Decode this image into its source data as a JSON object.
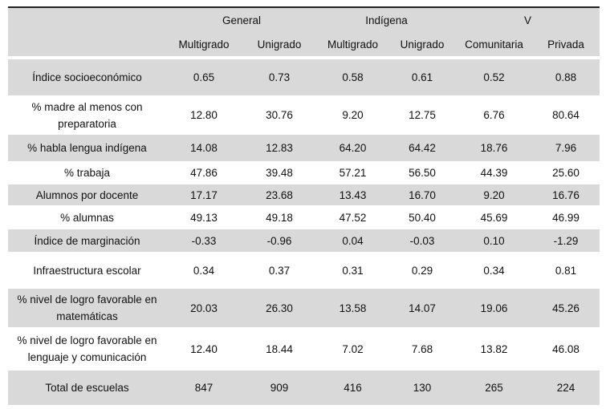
{
  "header": {
    "groups": [
      "General",
      "Indígena",
      "V"
    ],
    "subcolumns": [
      "Multigrado",
      "Unigrado",
      "Multigrado",
      "Unigrado",
      "Comunitaria",
      "Privada"
    ]
  },
  "rows": [
    {
      "label": "Índice socioeconómico",
      "values": [
        "0.65",
        "0.73",
        "0.58",
        "0.61",
        "0.52",
        "0.88"
      ]
    },
    {
      "label": "% madre al menos con preparatoria",
      "values": [
        "12.80",
        "30.76",
        "9.20",
        "12.75",
        "6.76",
        "80.64"
      ]
    },
    {
      "label": "% habla lengua indígena",
      "values": [
        "14.08",
        "12.83",
        "64.20",
        "64.42",
        "18.76",
        "7.96"
      ]
    },
    {
      "label": "% trabaja",
      "values": [
        "47.86",
        "39.48",
        "57.21",
        "56.50",
        "44.39",
        "25.60"
      ]
    },
    {
      "label": "Alumnos por docente",
      "values": [
        "17.17",
        "23.68",
        "13.43",
        "16.70",
        "9.20",
        "16.76"
      ]
    },
    {
      "label": "% alumnas",
      "values": [
        "49.13",
        "49.18",
        "47.52",
        "50.40",
        "45.69",
        "46.99"
      ]
    },
    {
      "label": "Índice de marginación",
      "values": [
        "-0.33",
        "-0.96",
        "0.04",
        "-0.03",
        "0.10",
        "-1.29"
      ]
    },
    {
      "label": "Infraestructura escolar",
      "values": [
        "0.34",
        "0.37",
        "0.31",
        "0.29",
        "0.34",
        "0.81"
      ]
    },
    {
      "label": "% nivel de logro favorable en matemáticas",
      "values": [
        "20.03",
        "26.30",
        "13.58",
        "14.07",
        "19.06",
        "45.26"
      ]
    },
    {
      "label": "% nivel de logro favorable en lenguaje y comunicación",
      "values": [
        "12.40",
        "18.44",
        "7.02",
        "7.68",
        "13.82",
        "46.08"
      ]
    },
    {
      "label": "Total de escuelas",
      "values": [
        "847",
        "909",
        "416",
        "130",
        "265",
        "224"
      ]
    }
  ],
  "colors": {
    "shade": "#d9d9d9",
    "rule": "#222222"
  }
}
